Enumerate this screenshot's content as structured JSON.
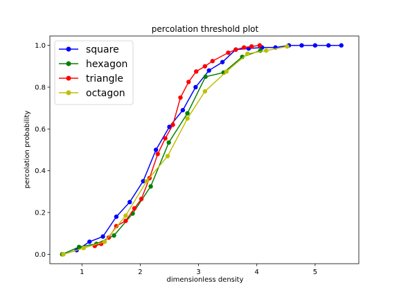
{
  "chart_data": {
    "type": "line",
    "title": "percolation threshold plot",
    "xlabel": "dimensionless density",
    "ylabel": "percolation probability",
    "xlim": [
      0.45,
      5.75
    ],
    "ylim": [
      -0.045,
      1.045
    ],
    "xticks": [
      1,
      2,
      3,
      4,
      5
    ],
    "yticks": [
      0.0,
      0.2,
      0.4,
      0.6,
      0.8,
      1.0
    ],
    "xtick_labels": [
      "1",
      "2",
      "3",
      "4",
      "5"
    ],
    "ytick_labels": [
      "0.0",
      "0.2",
      "0.4",
      "0.6",
      "0.8",
      "1.0"
    ],
    "grid": false,
    "legend_position": "top-left",
    "series": [
      {
        "name": "square",
        "color": "#0000ff",
        "x": [
          0.68,
          0.91,
          1.13,
          1.36,
          1.59,
          1.82,
          2.05,
          2.27,
          2.5,
          2.73,
          2.95,
          3.18,
          3.41,
          3.64,
          3.86,
          4.09,
          4.32,
          4.55,
          4.77,
          5.0,
          5.23,
          5.45
        ],
        "y": [
          0.0,
          0.02,
          0.06,
          0.085,
          0.18,
          0.25,
          0.35,
          0.5,
          0.61,
          0.69,
          0.8,
          0.88,
          0.92,
          0.98,
          0.985,
          0.99,
          0.99,
          1.0,
          1.0,
          1.0,
          1.0,
          1.0
        ]
      },
      {
        "name": "hexagon",
        "color": "#008000",
        "x": [
          0.66,
          0.95,
          1.25,
          1.55,
          1.87,
          2.18,
          2.49,
          2.81,
          3.12,
          3.43,
          3.75,
          4.06
        ],
        "y": [
          0.0,
          0.035,
          0.05,
          0.09,
          0.195,
          0.325,
          0.535,
          0.675,
          0.85,
          0.87,
          0.945,
          0.975
        ]
      },
      {
        "name": "triangle",
        "color": "#ff0000",
        "x": [
          1.22,
          1.33,
          1.46,
          1.59,
          1.75,
          1.9,
          2.02,
          2.16,
          2.3,
          2.43,
          2.56,
          2.69,
          2.83,
          2.96,
          3.11,
          3.24,
          3.51,
          3.64,
          3.78,
          3.91,
          4.05
        ],
        "y": [
          0.04,
          0.05,
          0.08,
          0.135,
          0.16,
          0.22,
          0.265,
          0.365,
          0.48,
          0.555,
          0.62,
          0.75,
          0.825,
          0.875,
          0.9,
          0.925,
          0.965,
          0.98,
          0.99,
          0.995,
          1.0
        ]
      },
      {
        "name": "octagon",
        "color": "#bfbf00",
        "x": [
          0.68,
          1.03,
          1.39,
          1.75,
          2.11,
          2.47,
          2.81,
          3.11,
          3.48,
          3.84,
          4.16,
          4.52
        ],
        "y": [
          0.0,
          0.03,
          0.06,
          0.185,
          0.35,
          0.47,
          0.65,
          0.78,
          0.875,
          0.96,
          0.975,
          0.995
        ]
      }
    ]
  }
}
